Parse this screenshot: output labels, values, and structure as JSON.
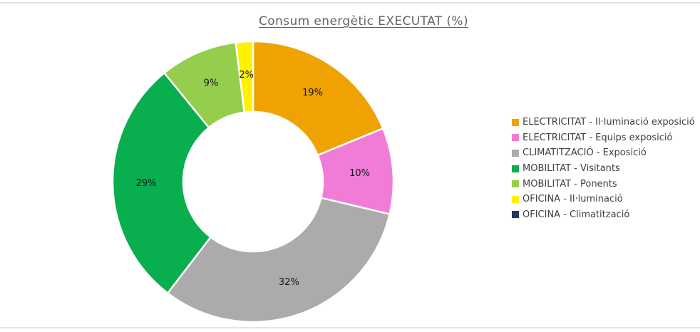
{
  "title": "Consum energètic EXECUTAT (%)",
  "chart_data": {
    "type": "pie",
    "subtype": "donut",
    "title": "Consum energètic EXECUTAT (%)",
    "legend_position": "right",
    "start_angle_deg": 0,
    "categories": [
      "ELECTRICITAT - Il·luminació exposició",
      "ELECTRICITAT - Equips exposició",
      "CLIMATITZACIÓ - Exposició",
      "MOBILITAT - Visitants",
      "MOBILITAT - Ponents",
      "OFICINA - Il·luminació",
      "OFICINA - Climatització"
    ],
    "values": [
      19,
      10,
      32,
      29,
      9,
      2,
      0
    ],
    "data_labels": [
      "19%",
      "10%",
      "32%",
      "29%",
      "9%",
      "2%",
      ""
    ],
    "colors": [
      "#F0A202",
      "#F17CD8",
      "#ABABAB",
      "#09AE4E",
      "#95CE4C",
      "#FFF100",
      "#1F3864"
    ]
  }
}
